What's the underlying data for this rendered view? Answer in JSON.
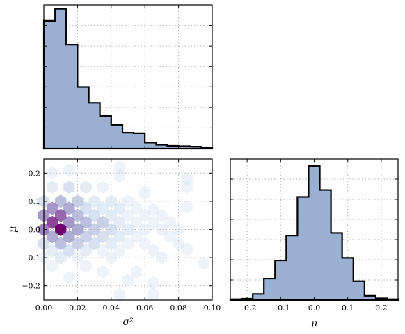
{
  "chart_data": [
    {
      "panel": "sigma2-histogram",
      "type": "bar",
      "xlabel": "",
      "ylabel": "",
      "xlim": [
        0.0,
        0.1
      ],
      "y_tick_labels_shown": false,
      "bin_edges": [
        0.0,
        0.0067,
        0.0133,
        0.02,
        0.0267,
        0.0333,
        0.04,
        0.0467,
        0.0533,
        0.06,
        0.0667,
        0.0733,
        0.08,
        0.0867,
        0.0933,
        0.1
      ],
      "values": [
        1290,
        1410,
        1050,
        620,
        460,
        330,
        240,
        160,
        155,
        60,
        38,
        28,
        25,
        20,
        10
      ],
      "grid": true,
      "fill_color": "#9ab0d2",
      "edge_color": "#000000"
    },
    {
      "panel": "joint-hexbin",
      "type": "heatmap",
      "xlabel": "σ²",
      "ylabel": "μ",
      "xlim": [
        0.0,
        0.1
      ],
      "ylim": [
        -0.25,
        0.25
      ],
      "x_ticks": [
        "0.00",
        "0.02",
        "0.04",
        "0.06",
        "0.08",
        "0.10"
      ],
      "y_ticks": [
        "−0.2",
        "−0.1",
        "0.0",
        "0.1",
        "0.2"
      ],
      "colormap": "BuPu",
      "grid": true,
      "cells": [
        {
          "x": 0.005,
          "y": 0.2,
          "c": 1
        },
        {
          "x": 0.015,
          "y": 0.21,
          "c": 1
        },
        {
          "x": 0.005,
          "y": 0.15,
          "c": 2
        },
        {
          "x": 0.015,
          "y": 0.15,
          "c": 3
        },
        {
          "x": 0.025,
          "y": 0.15,
          "c": 2
        },
        {
          "x": 0.035,
          "y": 0.15,
          "c": 1
        },
        {
          "x": 0.045,
          "y": 0.19,
          "c": 1
        },
        {
          "x": 0.045,
          "y": 0.22,
          "c": 1
        },
        {
          "x": 0.0,
          "y": 0.1,
          "c": 3
        },
        {
          "x": 0.01,
          "y": 0.1,
          "c": 5
        },
        {
          "x": 0.02,
          "y": 0.1,
          "c": 4
        },
        {
          "x": 0.03,
          "y": 0.1,
          "c": 2
        },
        {
          "x": 0.04,
          "y": 0.1,
          "c": 2
        },
        {
          "x": 0.05,
          "y": 0.1,
          "c": 1
        },
        {
          "x": 0.06,
          "y": 0.13,
          "c": 1
        },
        {
          "x": 0.085,
          "y": 0.15,
          "c": 1
        },
        {
          "x": 0.085,
          "y": 0.18,
          "c": 1
        },
        {
          "x": 0.005,
          "y": 0.075,
          "c": 7
        },
        {
          "x": 0.015,
          "y": 0.075,
          "c": 6
        },
        {
          "x": 0.025,
          "y": 0.075,
          "c": 3
        },
        {
          "x": 0.035,
          "y": 0.075,
          "c": 2
        },
        {
          "x": 0.045,
          "y": 0.075,
          "c": 2
        },
        {
          "x": 0.055,
          "y": 0.075,
          "c": 1
        },
        {
          "x": 0.065,
          "y": 0.07,
          "c": 1
        },
        {
          "x": 0.085,
          "y": 0.08,
          "c": 1
        },
        {
          "x": 0.0,
          "y": 0.05,
          "c": 7
        },
        {
          "x": 0.01,
          "y": 0.05,
          "c": 9
        },
        {
          "x": 0.02,
          "y": 0.05,
          "c": 5
        },
        {
          "x": 0.03,
          "y": 0.05,
          "c": 3
        },
        {
          "x": 0.04,
          "y": 0.05,
          "c": 2
        },
        {
          "x": 0.05,
          "y": 0.05,
          "c": 1
        },
        {
          "x": 0.06,
          "y": 0.05,
          "c": 1
        },
        {
          "x": 0.07,
          "y": 0.05,
          "c": 1
        },
        {
          "x": 0.005,
          "y": 0.025,
          "c": 10
        },
        {
          "x": 0.015,
          "y": 0.025,
          "c": 7
        },
        {
          "x": 0.025,
          "y": 0.025,
          "c": 5
        },
        {
          "x": 0.035,
          "y": 0.025,
          "c": 4
        },
        {
          "x": 0.045,
          "y": 0.025,
          "c": 2
        },
        {
          "x": 0.055,
          "y": 0.025,
          "c": 1
        },
        {
          "x": 0.065,
          "y": 0.025,
          "c": 1
        },
        {
          "x": 0.075,
          "y": 0.025,
          "c": 1
        },
        {
          "x": 0.0,
          "y": 0.0,
          "c": 8
        },
        {
          "x": 0.01,
          "y": 0.0,
          "c": 12
        },
        {
          "x": 0.02,
          "y": 0.0,
          "c": 6
        },
        {
          "x": 0.03,
          "y": 0.0,
          "c": 4
        },
        {
          "x": 0.04,
          "y": 0.0,
          "c": 3
        },
        {
          "x": 0.05,
          "y": 0.0,
          "c": 2
        },
        {
          "x": 0.06,
          "y": 0.0,
          "c": 1
        },
        {
          "x": 0.07,
          "y": 0.0,
          "c": 1
        },
        {
          "x": 0.08,
          "y": 0.0,
          "c": 1
        },
        {
          "x": 0.005,
          "y": -0.025,
          "c": 6
        },
        {
          "x": 0.015,
          "y": -0.025,
          "c": 6
        },
        {
          "x": 0.025,
          "y": -0.025,
          "c": 4
        },
        {
          "x": 0.035,
          "y": -0.025,
          "c": 3
        },
        {
          "x": 0.045,
          "y": -0.025,
          "c": 2
        },
        {
          "x": 0.055,
          "y": -0.025,
          "c": 1
        },
        {
          "x": 0.075,
          "y": -0.025,
          "c": 1
        },
        {
          "x": 0.0,
          "y": -0.05,
          "c": 3
        },
        {
          "x": 0.01,
          "y": -0.05,
          "c": 5
        },
        {
          "x": 0.02,
          "y": -0.05,
          "c": 4
        },
        {
          "x": 0.03,
          "y": -0.05,
          "c": 3
        },
        {
          "x": 0.04,
          "y": -0.05,
          "c": 2
        },
        {
          "x": 0.05,
          "y": -0.05,
          "c": 1
        },
        {
          "x": 0.06,
          "y": -0.05,
          "c": 1
        },
        {
          "x": 0.08,
          "y": -0.05,
          "c": 1
        },
        {
          "x": 0.005,
          "y": -0.075,
          "c": 2
        },
        {
          "x": 0.015,
          "y": -0.075,
          "c": 3
        },
        {
          "x": 0.025,
          "y": -0.075,
          "c": 2
        },
        {
          "x": 0.035,
          "y": -0.075,
          "c": 1
        },
        {
          "x": 0.045,
          "y": -0.075,
          "c": 1
        },
        {
          "x": 0.065,
          "y": -0.075,
          "c": 1
        },
        {
          "x": 0.085,
          "y": -0.07,
          "c": 1
        },
        {
          "x": 0.0,
          "y": -0.1,
          "c": 1
        },
        {
          "x": 0.01,
          "y": -0.1,
          "c": 2
        },
        {
          "x": 0.02,
          "y": -0.1,
          "c": 1
        },
        {
          "x": 0.04,
          "y": -0.1,
          "c": 1
        },
        {
          "x": 0.07,
          "y": -0.1,
          "c": 1
        },
        {
          "x": 0.095,
          "y": -0.12,
          "c": 1
        },
        {
          "x": 0.005,
          "y": -0.13,
          "c": 1
        },
        {
          "x": 0.025,
          "y": -0.13,
          "c": 1
        },
        {
          "x": 0.035,
          "y": -0.15,
          "c": 1
        },
        {
          "x": 0.055,
          "y": -0.15,
          "c": 1
        },
        {
          "x": 0.015,
          "y": -0.17,
          "c": 1
        },
        {
          "x": 0.05,
          "y": -0.18,
          "c": 1
        },
        {
          "x": 0.065,
          "y": -0.19,
          "c": 1
        },
        {
          "x": 0.045,
          "y": -0.23,
          "c": 1
        },
        {
          "x": 0.065,
          "y": -0.23,
          "c": 1
        }
      ]
    },
    {
      "panel": "mu-histogram",
      "type": "bar",
      "xlabel": "μ",
      "ylabel": "",
      "xlim": [
        -0.25,
        0.25
      ],
      "x_ticks": [
        "−0.2",
        "−0.1",
        "0.0",
        "0.1",
        "0.2"
      ],
      "x_tick_values": [
        -0.2,
        -0.1,
        0.0,
        0.1,
        0.2
      ],
      "y_tick_labels_shown": false,
      "bin_edges": [
        -0.25,
        -0.2167,
        -0.1833,
        -0.15,
        -0.1167,
        -0.0833,
        -0.05,
        -0.0167,
        0.0167,
        0.05,
        0.0833,
        0.1167,
        0.15,
        0.1833,
        0.2167,
        0.25
      ],
      "values": [
        5,
        8,
        35,
        125,
        230,
        375,
        600,
        780,
        640,
        390,
        245,
        110,
        25,
        10,
        5
      ],
      "grid": true,
      "fill_color": "#9ab0d2",
      "edge_color": "#000000"
    }
  ]
}
